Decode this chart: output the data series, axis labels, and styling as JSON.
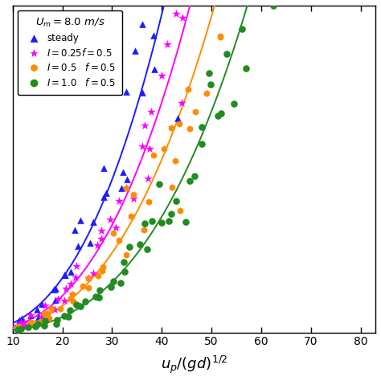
{
  "xlabel_text": "$u_p/(gd)^{1/2}$",
  "legend_title": "$U_m = 8.0$ m/s",
  "xlim": [
    10,
    83
  ],
  "ylim": [
    0,
    1.0
  ],
  "xticks": [
    10,
    20,
    30,
    40,
    50,
    60,
    70,
    80
  ],
  "color_steady": "#1c1cff",
  "color_I025": "#ff00ff",
  "color_I05": "#ff8c00",
  "color_I10": "#228b22",
  "fit_steady_xmax": 50,
  "fit_I025_xmax": 60,
  "fit_I05_xmax": 60,
  "fit_I10_xmax": 82,
  "noise_seed": 42
}
